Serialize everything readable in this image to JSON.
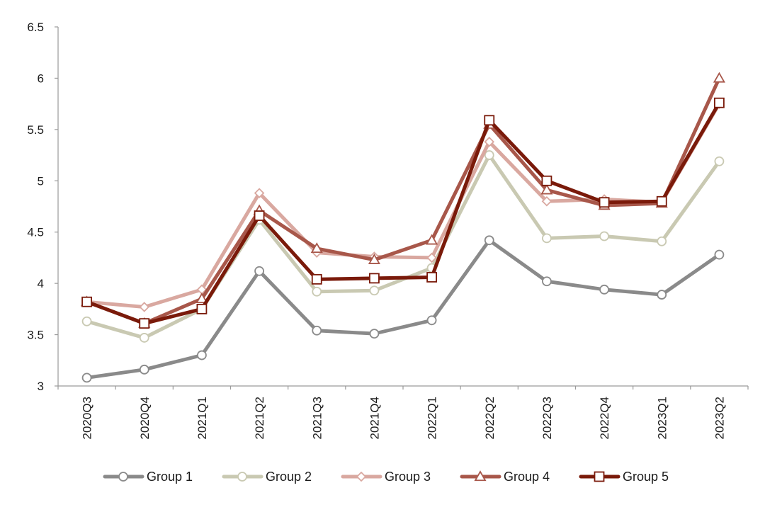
{
  "chart_data": {
    "type": "line",
    "title": "",
    "xlabel": "",
    "ylabel": "",
    "ylim": [
      3,
      6.5
    ],
    "yticks": [
      "3",
      "3.5",
      "4",
      "4.5",
      "5",
      "5.5",
      "6",
      "6.5"
    ],
    "grid": false,
    "legend_position": "bottom",
    "categories": [
      "2020Q3",
      "2020Q4",
      "2021Q1",
      "2021Q2",
      "2021Q3",
      "2021Q4",
      "2022Q1",
      "2022Q2",
      "2022Q3",
      "2022Q4",
      "2023Q1",
      "2023Q2"
    ],
    "series": [
      {
        "name": "Group 1",
        "color": "#8a8a8a",
        "marker": "circle",
        "values": [
          3.08,
          3.16,
          3.3,
          4.12,
          3.54,
          3.51,
          3.64,
          4.42,
          4.02,
          3.94,
          3.89,
          4.28
        ]
      },
      {
        "name": "Group 2",
        "color": "#c9c9b2",
        "marker": "circle",
        "values": [
          3.63,
          3.47,
          3.75,
          4.62,
          3.92,
          3.93,
          4.15,
          5.25,
          4.44,
          4.46,
          4.41,
          5.19
        ]
      },
      {
        "name": "Group 3",
        "color": "#d9a8a0",
        "marker": "diamond",
        "values": [
          3.82,
          3.77,
          3.94,
          4.88,
          4.3,
          4.26,
          4.25,
          5.38,
          4.8,
          4.82,
          4.79,
          5.75
        ]
      },
      {
        "name": "Group 4",
        "color": "#a8574a",
        "marker": "triangle",
        "values": [
          3.82,
          3.61,
          3.85,
          4.71,
          4.34,
          4.23,
          4.42,
          5.55,
          4.91,
          4.76,
          4.78,
          6.0
        ]
      },
      {
        "name": "Group 5",
        "color": "#7a1a0a",
        "marker": "square",
        "values": [
          3.82,
          3.61,
          3.75,
          4.66,
          4.04,
          4.05,
          4.06,
          5.59,
          5.0,
          4.79,
          4.8,
          5.76
        ]
      }
    ]
  }
}
